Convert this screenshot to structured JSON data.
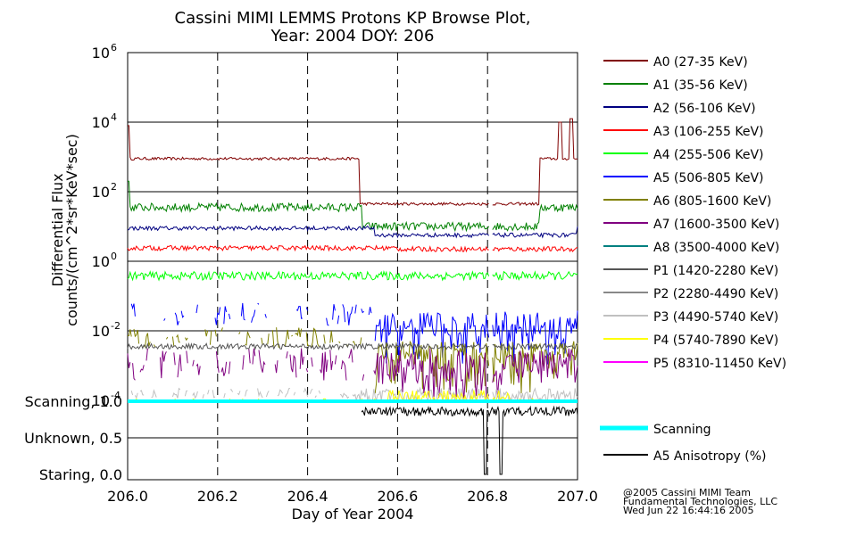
{
  "chart_data": {
    "type": "line",
    "title": "Cassini MIMI LEMMS Protons KP Browse Plot,",
    "subtitle": "Year: 2004 DOY: 206",
    "xlabel": "Day of Year 2004",
    "ylabel_line1": "Differential Flux",
    "ylabel_line2": "counts/(cm^2*sr*KeV*sec)",
    "xlim": [
      206.0,
      207.0
    ],
    "ylim_log10": [
      -4,
      6
    ],
    "x_ticks": [
      "206.0",
      "206.2",
      "206.4",
      "206.6",
      "206.8",
      "207.0"
    ],
    "y_ticks": [
      {
        "exp": 6,
        "base": "10",
        "sup": "6"
      },
      {
        "exp": 4,
        "base": "10",
        "sup": "4"
      },
      {
        "exp": 2,
        "base": "10",
        "sup": "2"
      },
      {
        "exp": 0,
        "base": "10",
        "sup": "0"
      },
      {
        "exp": -2,
        "base": "10",
        "sup": "-2"
      },
      {
        "exp": -4,
        "base": "10",
        "sup": "-4"
      }
    ],
    "data_gap": [
      206.805,
      206.81
    ],
    "series": [
      {
        "name": "A0 (27-35 KeV)",
        "color": "#800000",
        "level": 2.95,
        "level_after": 1.65,
        "transition": 206.515,
        "recover": 206.915,
        "noise": 0.04,
        "spikes": [
          [
            206.0,
            3.9
          ],
          [
            206.96,
            4.0
          ],
          [
            206.985,
            4.1
          ]
        ]
      },
      {
        "name": "A1 (35-56 KeV)",
        "color": "#008000",
        "level": 1.55,
        "level_after": 1.0,
        "transition": 206.52,
        "recover": 206.915,
        "noise": 0.12,
        "spikes": [
          [
            206.0,
            2.3
          ]
        ]
      },
      {
        "name": "A2 (56-106 KeV)",
        "color": "#000080",
        "level": 0.95,
        "level_after": 0.75,
        "transition": 206.55,
        "recover": 207.0,
        "noise": 0.06
      },
      {
        "name": "A3 (106-255 KeV)",
        "color": "#ff0000",
        "level": 0.38,
        "level_after": 0.35,
        "transition": 206.6,
        "recover": 207.0,
        "noise": 0.07
      },
      {
        "name": "A4 (255-506 KeV)",
        "color": "#00ff00",
        "level": -0.42,
        "level_after": -0.42,
        "transition": 206.6,
        "recover": 207.0,
        "noise": 0.12
      },
      {
        "name": "A5 (506-805 KeV)",
        "color": "#0000ff",
        "level": -1.55,
        "level_after": -1.8,
        "transition": 206.55,
        "recover": 207.0,
        "noise": 0.35,
        "sparse": true
      },
      {
        "name": "A6 (805-1600 KeV)",
        "color": "#808000",
        "level": -2.2,
        "level_after": -2.6,
        "transition": 206.55,
        "recover": 207.0,
        "noise": 0.3,
        "sparse": true
      },
      {
        "name": "A7 (1600-3500 KeV)",
        "color": "#800080",
        "level": -3.0,
        "level_after": -3.0,
        "transition": 206.55,
        "recover": 206.85,
        "noise": 0.5,
        "sparse": true
      },
      {
        "name": "A8 (3500-4000 KeV)",
        "color": "#008080",
        "level": -4.5,
        "level_after": -4.5,
        "transition": 206.5,
        "recover": 207.0,
        "noise": 0.0,
        "hidden": true
      },
      {
        "name": "P1 (1420-2280 KeV)",
        "color": "#555555",
        "level": -2.45,
        "level_after": -2.45,
        "transition": 206.5,
        "recover": 207.0,
        "noise": 0.08
      },
      {
        "name": "P2 (2280-4490 KeV)",
        "color": "#888888",
        "level": -4.5,
        "level_after": -4.5,
        "transition": 206.5,
        "recover": 207.0,
        "noise": 0.0,
        "hidden": true
      },
      {
        "name": "P3 (4490-5740 KeV)",
        "color": "#c0c0c0",
        "level": -3.8,
        "level_after": -3.8,
        "transition": 206.5,
        "recover": 207.0,
        "noise": 0.15,
        "sparse": true
      },
      {
        "name": "P4 (5740-7890 KeV)",
        "color": "#ffff00",
        "level": -4.1,
        "level_after": -3.85,
        "transition": 206.58,
        "recover": 206.85,
        "noise": 0.15,
        "sparse": true
      },
      {
        "name": "P5 (8310-11450 KeV)",
        "color": "#ff00ff",
        "level": -4.5,
        "level_after": -4.5,
        "transition": 206.5,
        "recover": 207.0,
        "noise": 0.0,
        "hidden": true
      }
    ],
    "mode_panel": {
      "y_labels": [
        "Scanning, 1.0",
        "Unknown, 0.5",
        "Staring, 0.0"
      ],
      "scanning": {
        "name": "Scanning",
        "color": "#00ffff",
        "value": 1.0
      },
      "anisotropy": {
        "name": "A5 Anisotropy (%)",
        "color": "#000000",
        "start": 206.52,
        "end": 207.0,
        "level": 0.92
      }
    }
  },
  "credits": {
    "line1": "@2005 Cassini MIMI Team",
    "line2": "Fundamental Technologies, LLC",
    "line3": "Wed Jun 22 16:44:16 2005"
  }
}
